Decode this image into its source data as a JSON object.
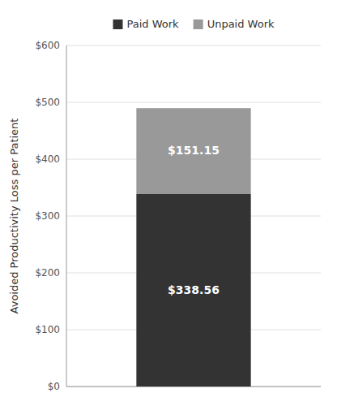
{
  "chart_data": {
    "type": "bar",
    "stacked": true,
    "ylabel": "Avoided Productivity Loss per Patient",
    "categories": [
      null
    ],
    "series": [
      {
        "name": "Paid Work",
        "color": "#333333",
        "values": [
          338.56
        ],
        "value_labels": [
          "$338.56"
        ]
      },
      {
        "name": "Unpaid Work",
        "color": "#999999",
        "values": [
          151.15
        ],
        "value_labels": [
          "$151.15"
        ]
      }
    ],
    "ylim": [
      0,
      600
    ],
    "yticks": [
      {
        "value": 0,
        "label": "$0"
      },
      {
        "value": 100,
        "label": "$100"
      },
      {
        "value": 200,
        "label": "$200"
      },
      {
        "value": 300,
        "label": "$300"
      },
      {
        "value": 400,
        "label": "$400"
      },
      {
        "value": 500,
        "label": "$500"
      },
      {
        "value": 600,
        "label": "$600"
      }
    ],
    "grid": true,
    "legend": "top",
    "data_labels": true,
    "tick_labels": "y"
  }
}
